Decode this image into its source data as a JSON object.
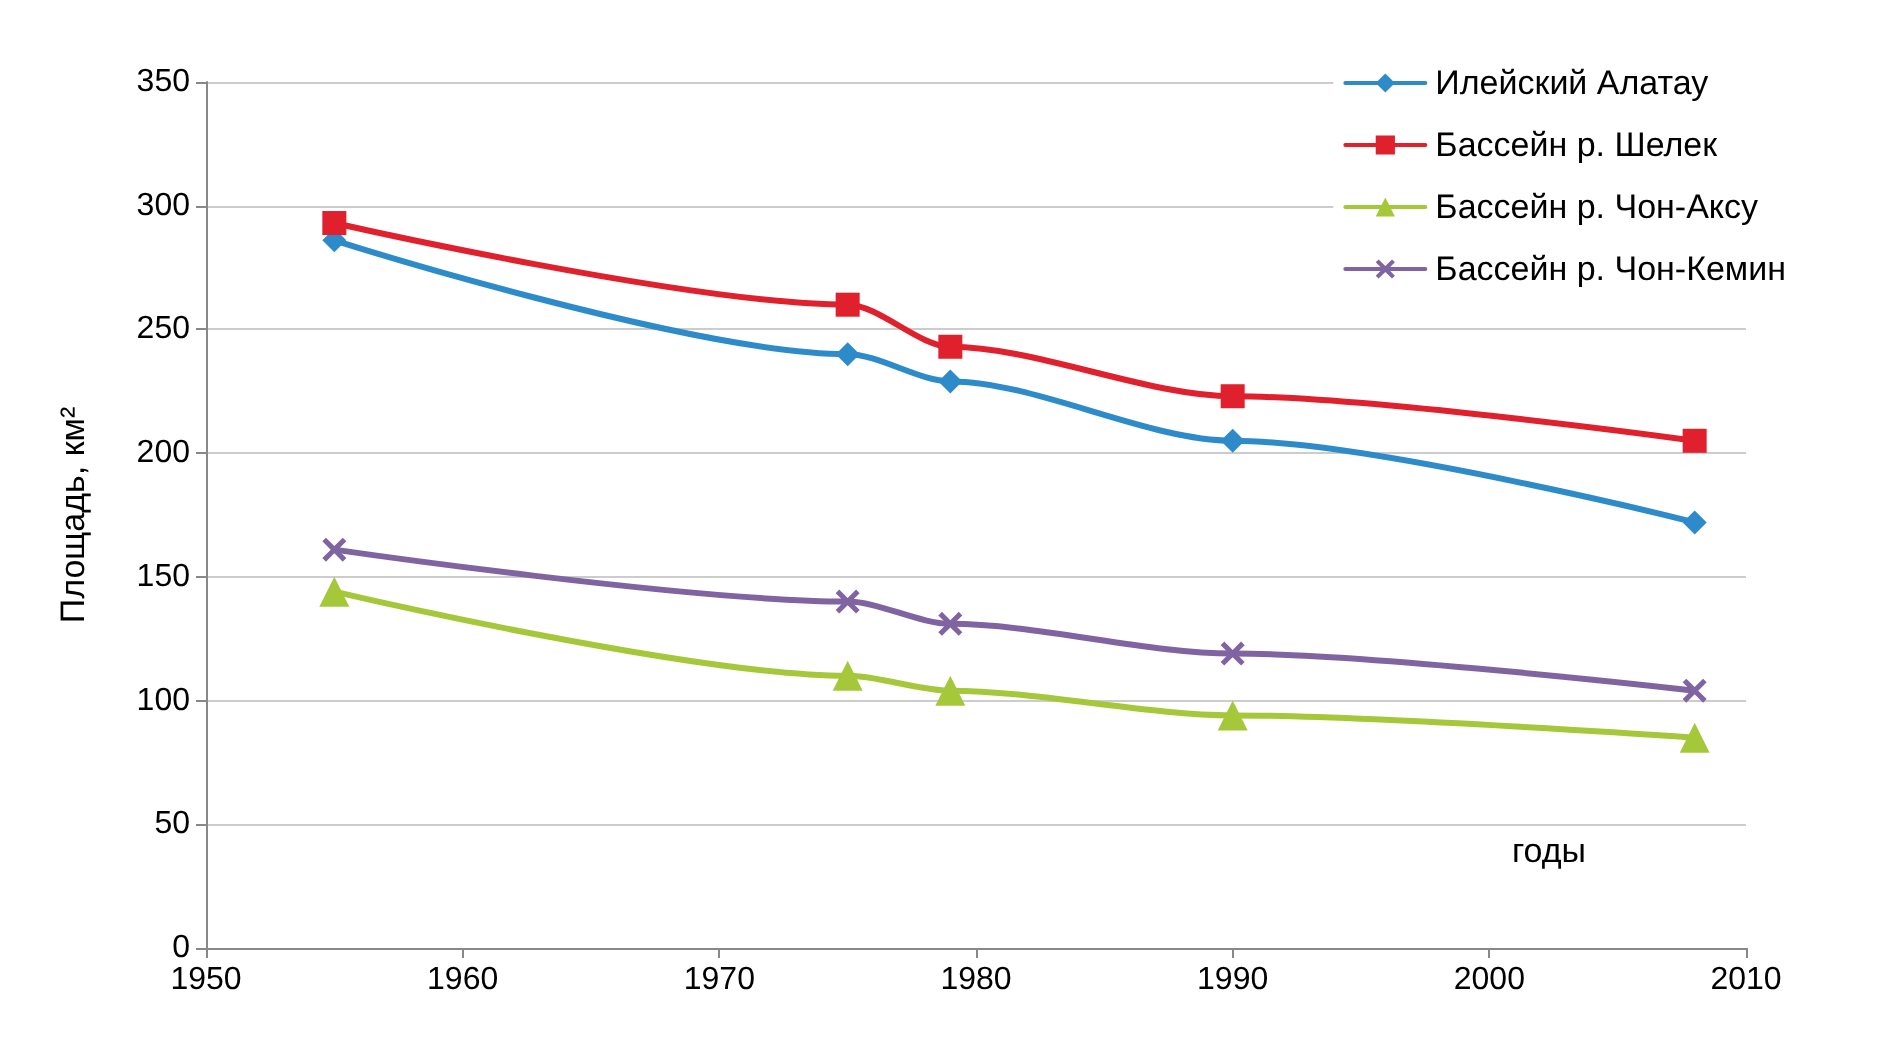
{
  "chart_data": {
    "type": "line",
    "xlabel": "годы",
    "ylabel": "Площадь, км²",
    "x": [
      1955,
      1975,
      1979,
      1990,
      2008
    ],
    "xlim": [
      1950,
      2010
    ],
    "xticks": [
      1950,
      1960,
      1970,
      1980,
      1990,
      2000,
      2010
    ],
    "ylim": [
      0,
      350
    ],
    "yticks": [
      0,
      50,
      100,
      150,
      200,
      250,
      300,
      350
    ],
    "grid": "y",
    "legend": "top right",
    "line_style": "solid",
    "series": [
      {
        "name": "Илейский Алатау",
        "color": "#2e8bc9",
        "marker": "diamond",
        "values": [
          286,
          240,
          229,
          205,
          172
        ]
      },
      {
        "name": "Бассейн р. Шелек",
        "color": "#e0202c",
        "marker": "square",
        "values": [
          293,
          260,
          243,
          223,
          205
        ]
      },
      {
        "name": "Бассейн р. Чон-Аксу",
        "color": "#a5c83a",
        "marker": "triangle",
        "values": [
          144,
          110,
          104,
          94,
          85
        ]
      },
      {
        "name": "Бассейн р. Чон-Кемин",
        "color": "#8064a2",
        "marker": "cross",
        "values": [
          161,
          140,
          131,
          119,
          104
        ]
      }
    ]
  }
}
